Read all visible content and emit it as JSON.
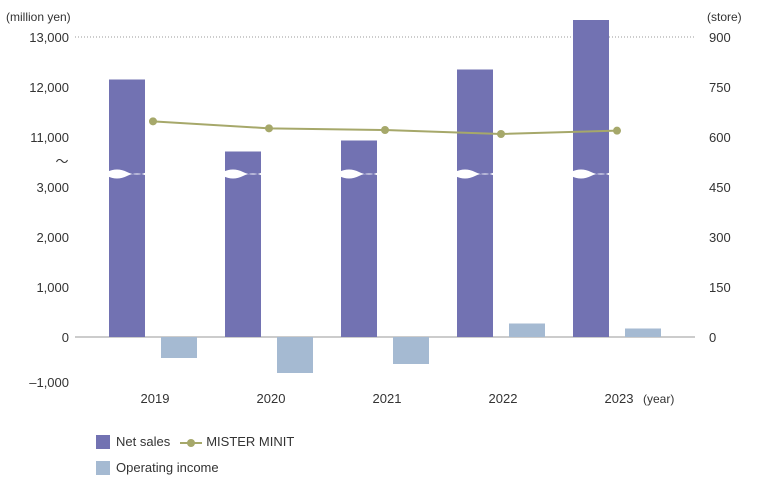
{
  "chart_data": {
    "type": "bar",
    "categories": [
      "2019",
      "2020",
      "2021",
      "2022",
      "2023"
    ],
    "x_unit": "(year)",
    "left_axis": {
      "unit": "(million yen)",
      "ticks": [
        "13,000",
        "12,000",
        "11,000",
        "3,000",
        "2,000",
        "1,000",
        "0",
        "–1,000"
      ],
      "break_symbol": "〜"
    },
    "right_axis": {
      "unit": "(store)",
      "ticks": [
        "900",
        "750",
        "600",
        "450",
        "300",
        "150",
        "0"
      ],
      "ylim": [
        0,
        900
      ]
    },
    "series": [
      {
        "name": "Net sales",
        "kind": "bar",
        "axis": "left",
        "color": "#7272b2",
        "values": [
          12150,
          10710,
          10930,
          12350,
          13340
        ]
      },
      {
        "name": "Operating income",
        "kind": "bar",
        "axis": "left",
        "color": "#a5bad2",
        "values": [
          -420,
          -720,
          -540,
          270,
          170
        ]
      },
      {
        "name": "MISTER MINIT",
        "kind": "line",
        "axis": "right",
        "color": "#a6a86a",
        "values": [
          647,
          626,
          621,
          609,
          619
        ]
      }
    ]
  },
  "legend": {
    "net_sales": "Net sales",
    "mister_minit": "MISTER MINIT",
    "operating_income": "Operating income"
  }
}
